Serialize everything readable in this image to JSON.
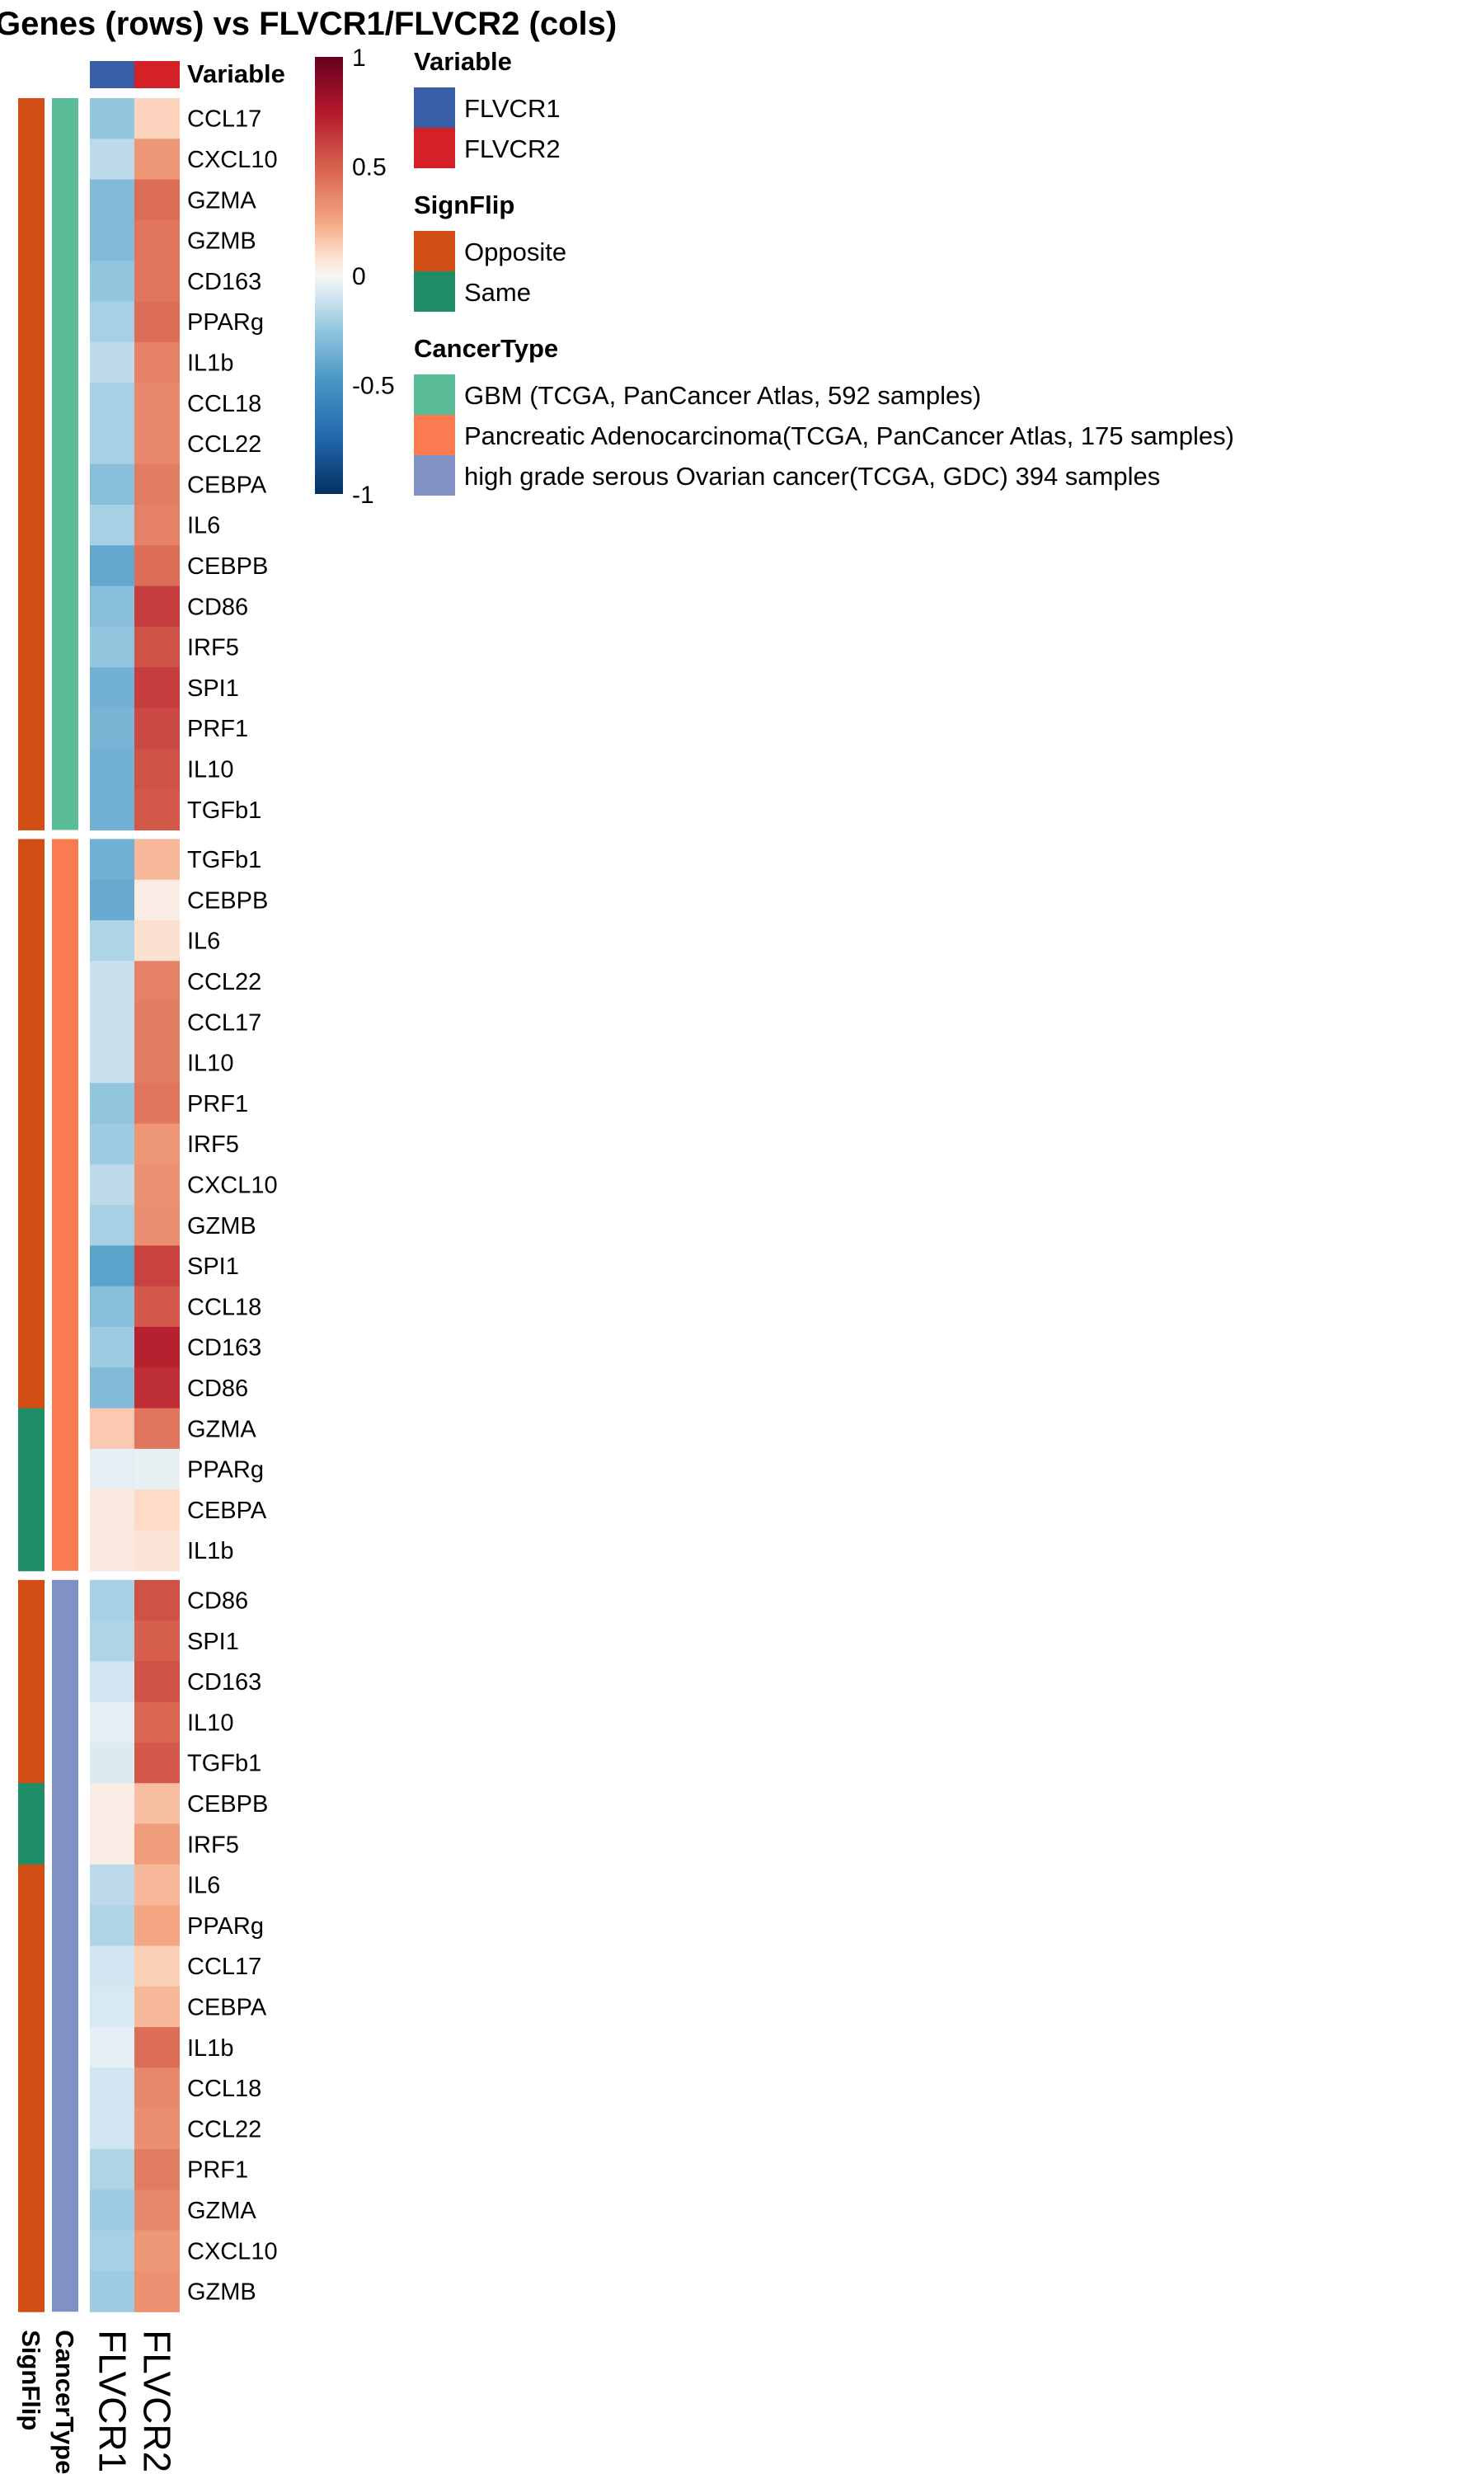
{
  "title": "Genes (rows) vs FLVCR1/FLVCR2 (cols)",
  "colors": {
    "FLVCR1": "#3a5fa9",
    "FLVCR2": "#d42128",
    "Opposite": "#d14f14",
    "Same": "#1f8e68",
    "GBM": "#5bbd97",
    "Pancreatic": "#fb7b51",
    "Ovarian": "#8191c4"
  },
  "chart_data": {
    "type": "heatmap",
    "columns": [
      "FLVCR1",
      "FLVCR2"
    ],
    "column_annotation": {
      "title": "Variable",
      "values": [
        "FLVCR1",
        "FLVCR2"
      ]
    },
    "color_scale": {
      "min": -1,
      "max": 1,
      "ticks": [
        "1",
        "0.5",
        "0",
        "-0.5",
        "-1"
      ],
      "tick_values": [
        1,
        0.5,
        0,
        -0.5,
        -1
      ],
      "stops": [
        {
          "value": -1,
          "color": "#053061"
        },
        {
          "value": -0.75,
          "color": "#2166ac"
        },
        {
          "value": -0.5,
          "color": "#4393c3"
        },
        {
          "value": -0.25,
          "color": "#92c5de"
        },
        {
          "value": -0.1,
          "color": "#d1e5f0"
        },
        {
          "value": 0,
          "color": "#f7f7f7"
        },
        {
          "value": 0.1,
          "color": "#fddbc7"
        },
        {
          "value": 0.25,
          "color": "#f4a582"
        },
        {
          "value": 0.5,
          "color": "#d6604d"
        },
        {
          "value": 0.75,
          "color": "#b2182b"
        },
        {
          "value": 1,
          "color": "#67001f"
        }
      ]
    },
    "row_annotation_labels": [
      "SignFlip",
      "CancerType"
    ],
    "legends": [
      {
        "title": "Variable",
        "entries": [
          {
            "label": "FLVCR1",
            "color_key": "FLVCR1"
          },
          {
            "label": "FLVCR2",
            "color_key": "FLVCR2"
          }
        ]
      },
      {
        "title": "SignFlip",
        "entries": [
          {
            "label": "Opposite",
            "color_key": "Opposite"
          },
          {
            "label": "Same",
            "color_key": "Same"
          }
        ]
      },
      {
        "title": "CancerType",
        "entries": [
          {
            "label": "GBM (TCGA, PanCancer Atlas, 592 samples)",
            "color_key": "GBM"
          },
          {
            "label": "Pancreatic Adenocarcinoma(TCGA, PanCancer Atlas, 175 samples)",
            "color_key": "Pancreatic"
          },
          {
            "label": "high grade serous Ovarian cancer(TCGA, GDC) 394 samples",
            "color_key": "Ovarian"
          }
        ]
      }
    ],
    "blocks": [
      {
        "cancer_type": "GBM",
        "rows": [
          {
            "gene": "CCL17",
            "sign": "Opposite",
            "FLVCR1": -0.25,
            "FLVCR2": 0.12
          },
          {
            "gene": "CXCL10",
            "sign": "Opposite",
            "FLVCR1": -0.15,
            "FLVCR2": 0.3
          },
          {
            "gene": "GZMA",
            "sign": "Opposite",
            "FLVCR1": -0.3,
            "FLVCR2": 0.45
          },
          {
            "gene": "GZMB",
            "sign": "Opposite",
            "FLVCR1": -0.3,
            "FLVCR2": 0.42
          },
          {
            "gene": "CD163",
            "sign": "Opposite",
            "FLVCR1": -0.25,
            "FLVCR2": 0.42
          },
          {
            "gene": "PPARg",
            "sign": "Opposite",
            "FLVCR1": -0.2,
            "FLVCR2": 0.45
          },
          {
            "gene": "IL1b",
            "sign": "Opposite",
            "FLVCR1": -0.15,
            "FLVCR2": 0.38
          },
          {
            "gene": "CCL18",
            "sign": "Opposite",
            "FLVCR1": -0.2,
            "FLVCR2": 0.35
          },
          {
            "gene": "CCL22",
            "sign": "Opposite",
            "FLVCR1": -0.2,
            "FLVCR2": 0.35
          },
          {
            "gene": "CEBPA",
            "sign": "Opposite",
            "FLVCR1": -0.28,
            "FLVCR2": 0.4
          },
          {
            "gene": "IL6",
            "sign": "Opposite",
            "FLVCR1": -0.2,
            "FLVCR2": 0.38
          },
          {
            "gene": "CEBPB",
            "sign": "Opposite",
            "FLVCR1": -0.4,
            "FLVCR2": 0.45
          },
          {
            "gene": "CD86",
            "sign": "Opposite",
            "FLVCR1": -0.28,
            "FLVCR2": 0.62
          },
          {
            "gene": "IRF5",
            "sign": "Opposite",
            "FLVCR1": -0.25,
            "FLVCR2": 0.55
          },
          {
            "gene": "SPI1",
            "sign": "Opposite",
            "FLVCR1": -0.35,
            "FLVCR2": 0.62
          },
          {
            "gene": "PRF1",
            "sign": "Opposite",
            "FLVCR1": -0.33,
            "FLVCR2": 0.58
          },
          {
            "gene": "IL10",
            "sign": "Opposite",
            "FLVCR1": -0.35,
            "FLVCR2": 0.55
          },
          {
            "gene": "TGFb1",
            "sign": "Opposite",
            "FLVCR1": -0.35,
            "FLVCR2": 0.52
          }
        ]
      },
      {
        "cancer_type": "Pancreatic",
        "rows": [
          {
            "gene": "TGFb1",
            "sign": "Opposite",
            "FLVCR1": -0.35,
            "FLVCR2": 0.2
          },
          {
            "gene": "CEBPB",
            "sign": "Opposite",
            "FLVCR1": -0.38,
            "FLVCR2": 0.04
          },
          {
            "gene": "IL6",
            "sign": "Opposite",
            "FLVCR1": -0.18,
            "FLVCR2": 0.08
          },
          {
            "gene": "CCL22",
            "sign": "Opposite",
            "FLVCR1": -0.12,
            "FLVCR2": 0.38
          },
          {
            "gene": "CCL17",
            "sign": "Opposite",
            "FLVCR1": -0.12,
            "FLVCR2": 0.4
          },
          {
            "gene": "IL10",
            "sign": "Opposite",
            "FLVCR1": -0.12,
            "FLVCR2": 0.4
          },
          {
            "gene": "PRF1",
            "sign": "Opposite",
            "FLVCR1": -0.25,
            "FLVCR2": 0.42
          },
          {
            "gene": "IRF5",
            "sign": "Opposite",
            "FLVCR1": -0.22,
            "FLVCR2": 0.3
          },
          {
            "gene": "CXCL10",
            "sign": "Opposite",
            "FLVCR1": -0.15,
            "FLVCR2": 0.32
          },
          {
            "gene": "GZMB",
            "sign": "Opposite",
            "FLVCR1": -0.2,
            "FLVCR2": 0.33
          },
          {
            "gene": "SPI1",
            "sign": "Opposite",
            "FLVCR1": -0.42,
            "FLVCR2": 0.6
          },
          {
            "gene": "CCL18",
            "sign": "Opposite",
            "FLVCR1": -0.28,
            "FLVCR2": 0.52
          },
          {
            "gene": "CD163",
            "sign": "Opposite",
            "FLVCR1": -0.22,
            "FLVCR2": 0.72
          },
          {
            "gene": "CD86",
            "sign": "Opposite",
            "FLVCR1": -0.3,
            "FLVCR2": 0.67
          },
          {
            "gene": "GZMA",
            "sign": "Same",
            "FLVCR1": 0.15,
            "FLVCR2": 0.42
          },
          {
            "gene": "PPARg",
            "sign": "Same",
            "FLVCR1": -0.05,
            "FLVCR2": -0.04
          },
          {
            "gene": "CEBPA",
            "sign": "Same",
            "FLVCR1": 0.05,
            "FLVCR2": 0.1
          },
          {
            "gene": "IL1b",
            "sign": "Same",
            "FLVCR1": 0.05,
            "FLVCR2": 0.07
          }
        ]
      },
      {
        "cancer_type": "Ovarian",
        "rows": [
          {
            "gene": "CD86",
            "sign": "Opposite",
            "FLVCR1": -0.2,
            "FLVCR2": 0.55
          },
          {
            "gene": "SPI1",
            "sign": "Opposite",
            "FLVCR1": -0.18,
            "FLVCR2": 0.5
          },
          {
            "gene": "CD163",
            "sign": "Opposite",
            "FLVCR1": -0.1,
            "FLVCR2": 0.55
          },
          {
            "gene": "IL10",
            "sign": "Opposite",
            "FLVCR1": -0.05,
            "FLVCR2": 0.48
          },
          {
            "gene": "TGFb1",
            "sign": "Opposite",
            "FLVCR1": -0.07,
            "FLVCR2": 0.52
          },
          {
            "gene": "CEBPB",
            "sign": "Same",
            "FLVCR1": 0.04,
            "FLVCR2": 0.18
          },
          {
            "gene": "IRF5",
            "sign": "Same",
            "FLVCR1": 0.04,
            "FLVCR2": 0.28
          },
          {
            "gene": "IL6",
            "sign": "Opposite",
            "FLVCR1": -0.15,
            "FLVCR2": 0.2
          },
          {
            "gene": "PPARg",
            "sign": "Opposite",
            "FLVCR1": -0.18,
            "FLVCR2": 0.25
          },
          {
            "gene": "CCL17",
            "sign": "Opposite",
            "FLVCR1": -0.1,
            "FLVCR2": 0.13
          },
          {
            "gene": "CEBPA",
            "sign": "Opposite",
            "FLVCR1": -0.08,
            "FLVCR2": 0.2
          },
          {
            "gene": "IL1b",
            "sign": "Opposite",
            "FLVCR1": -0.05,
            "FLVCR2": 0.45
          },
          {
            "gene": "CCL18",
            "sign": "Opposite",
            "FLVCR1": -0.1,
            "FLVCR2": 0.35
          },
          {
            "gene": "CCL22",
            "sign": "Opposite",
            "FLVCR1": -0.1,
            "FLVCR2": 0.33
          },
          {
            "gene": "PRF1",
            "sign": "Opposite",
            "FLVCR1": -0.18,
            "FLVCR2": 0.4
          },
          {
            "gene": "GZMA",
            "sign": "Opposite",
            "FLVCR1": -0.22,
            "FLVCR2": 0.36
          },
          {
            "gene": "CXCL10",
            "sign": "Opposite",
            "FLVCR1": -0.2,
            "FLVCR2": 0.3
          },
          {
            "gene": "GZMB",
            "sign": "Opposite",
            "FLVCR1": -0.22,
            "FLVCR2": 0.32
          }
        ]
      }
    ]
  }
}
